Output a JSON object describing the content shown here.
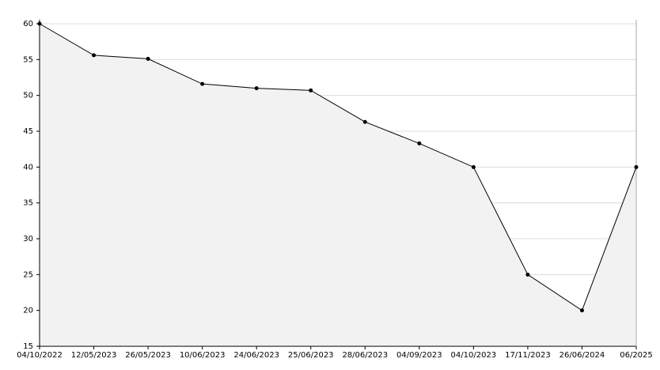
{
  "chart_data": {
    "type": "area",
    "categories": [
      "04/10/2022",
      "12/05/2023",
      "26/05/2023",
      "10/06/2023",
      "24/06/2023",
      "25/06/2023",
      "28/06/2023",
      "04/09/2023",
      "04/10/2023",
      "17/11/2023",
      "26/06/2024",
      "06/2025"
    ],
    "values": [
      60,
      55.6,
      55.1,
      51.6,
      51.0,
      50.7,
      46.3,
      43.3,
      40,
      25,
      20,
      40
    ],
    "color": "#000000",
    "fill": "#f2f2f2",
    "ylim": [
      15,
      60
    ],
    "yticks": [
      15,
      20,
      25,
      30,
      35,
      40,
      45,
      50,
      55,
      60
    ],
    "grid": true
  }
}
